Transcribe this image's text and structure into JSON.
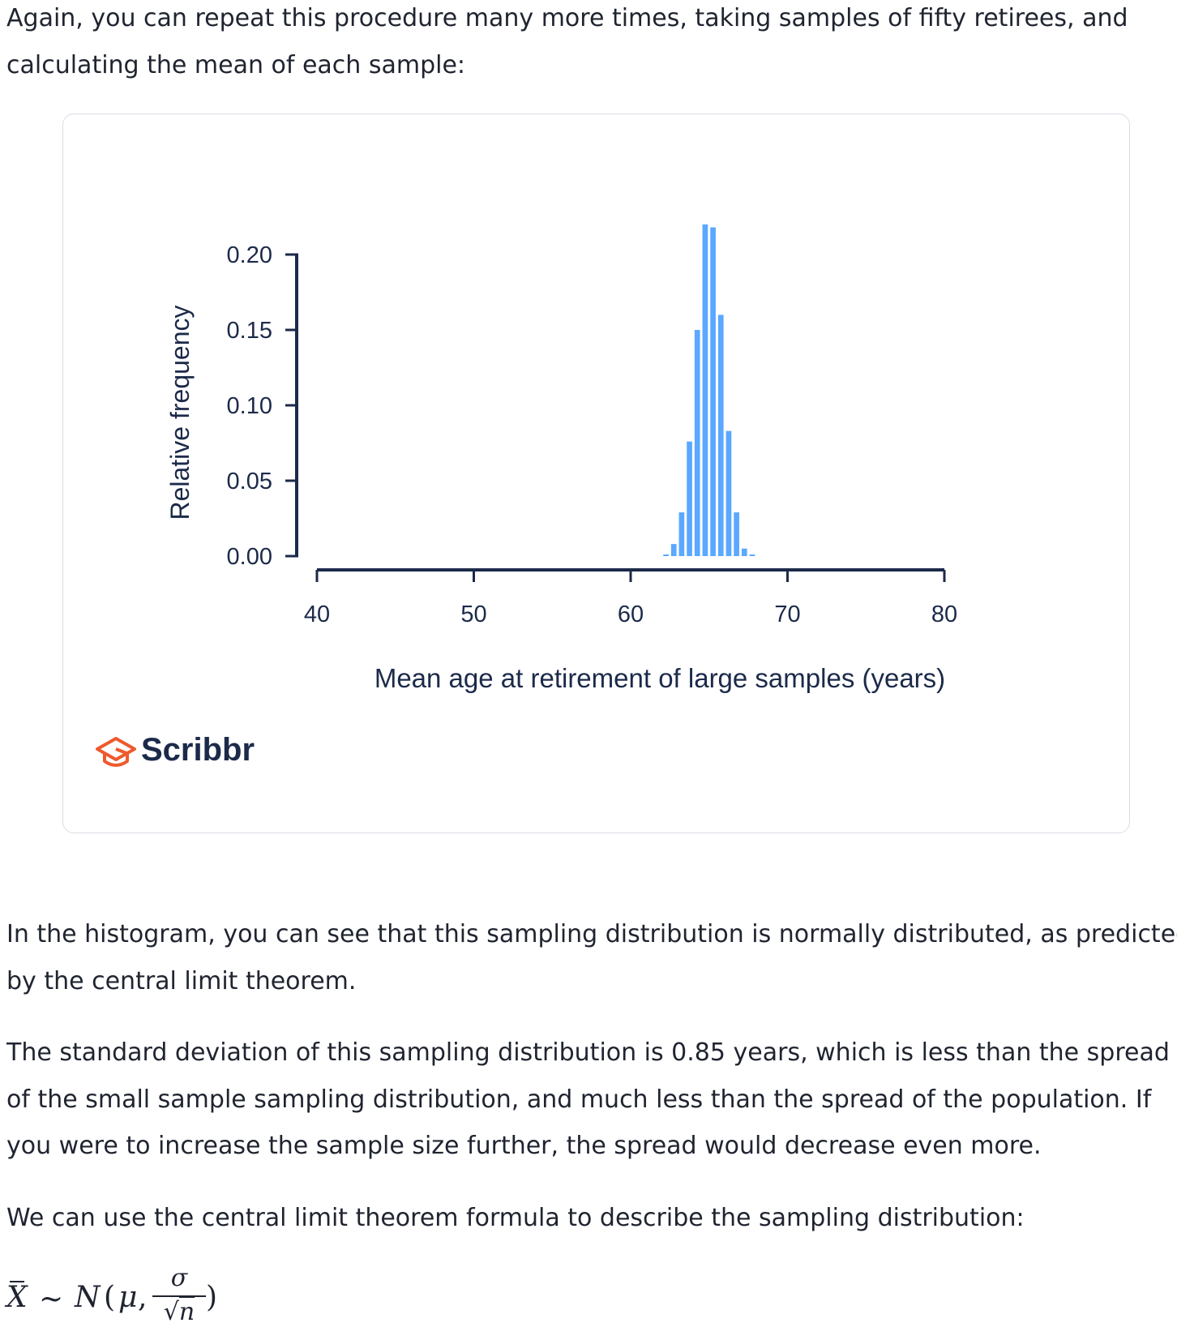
{
  "paragraphs": {
    "intro": [
      "Again, you can repeat this procedure many more times, taking samples of fifty retirees, and",
      "calculating the mean of each sample:"
    ],
    "histogram_note": [
      "In the histogram, you can see that this sampling distribution is normally distributed, as predicted",
      "by the central limit theorem."
    ],
    "std_note": [
      "The standard deviation of this sampling distribution is 0.85 years, which is less than the spread",
      "of the small sample sampling distribution, and much less than the spread of the population. If",
      "you were to increase the sample size further, the spread would decrease even more."
    ],
    "formula_intro": [
      "We can use the central limit theorem formula to describe the sampling distribution:"
    ]
  },
  "formula": {
    "xbar": "X",
    "tilde": "~",
    "dist": "N",
    "open": "(",
    "mu": "μ",
    "comma": ",",
    "numerator": "σ",
    "sqrt": "√",
    "n": "n",
    "close": ")"
  },
  "figure": {
    "brand": "Scribbr",
    "colors": {
      "bar": "#5aa8ff",
      "axis": "#1c2a4a",
      "brand_accent": "#ee5a2d",
      "card_border": "#d9dde5"
    },
    "icons": {
      "logo": "graduation-cap-logo-icon"
    }
  },
  "chart_data": {
    "type": "bar",
    "title": "",
    "xlabel": "Mean age at retirement of large samples (years)",
    "ylabel": "Relative frequency",
    "xlim": [
      40,
      80
    ],
    "ylim": [
      0,
      0.2
    ],
    "x_ticks": [
      40,
      50,
      60,
      70,
      80
    ],
    "y_ticks": [
      "0.00",
      "0.05",
      "0.10",
      "0.15",
      "0.20"
    ],
    "x_tick_labels": [
      "40",
      "50",
      "60",
      "70",
      "80"
    ],
    "grid": false,
    "legend": "none",
    "bin_width": 0.5,
    "bins": [
      {
        "x": 62.25,
        "value": 0.001
      },
      {
        "x": 62.75,
        "value": 0.008
      },
      {
        "x": 63.25,
        "value": 0.029
      },
      {
        "x": 63.75,
        "value": 0.076
      },
      {
        "x": 64.25,
        "value": 0.15
      },
      {
        "x": 64.75,
        "value": 0.22
      },
      {
        "x": 65.25,
        "value": 0.218
      },
      {
        "x": 65.75,
        "value": 0.16
      },
      {
        "x": 66.25,
        "value": 0.083
      },
      {
        "x": 66.75,
        "value": 0.029
      },
      {
        "x": 67.25,
        "value": 0.005
      },
      {
        "x": 67.75,
        "value": 0.001
      }
    ]
  }
}
